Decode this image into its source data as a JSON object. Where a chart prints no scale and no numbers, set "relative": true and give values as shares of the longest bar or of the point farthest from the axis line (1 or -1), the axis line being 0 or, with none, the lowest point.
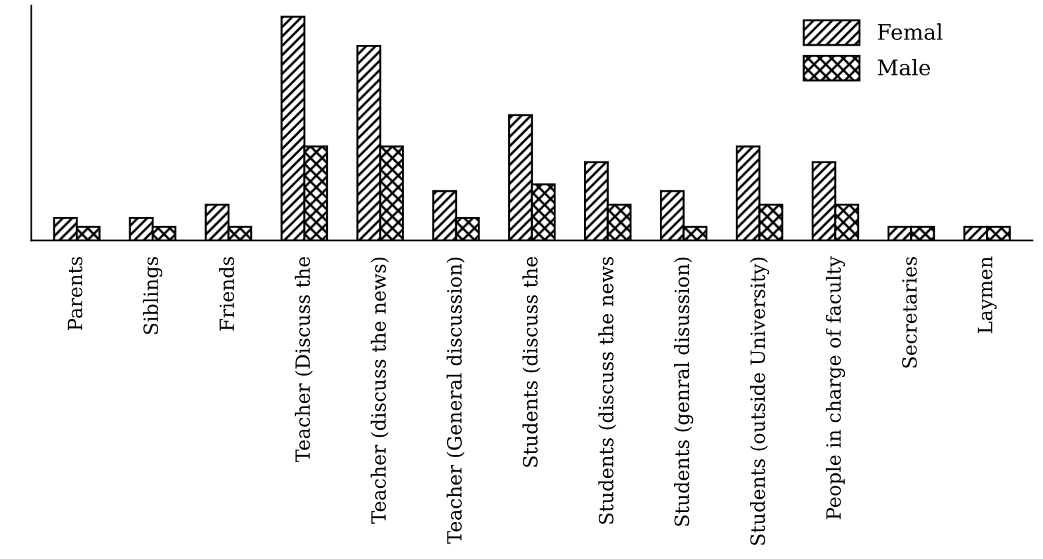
{
  "chart_data": {
    "type": "bar",
    "relative": true,
    "legend": "top right",
    "categories": [
      "Parents",
      "Siblings",
      "Friends",
      "Teacher (Discuss the",
      "Teacher (discuss the news)",
      "Teacher (General discussion)",
      "Students (discuss the",
      "Students (discuss the news",
      "Students (genral disussion)",
      "Students (outside University)",
      "People in charge of faculty",
      "Secretaries",
      "Laymen"
    ],
    "series": [
      {
        "name": "Femal",
        "color": "#000000",
        "values": [
          0.1,
          0.1,
          0.16,
          1,
          0.87,
          0.22,
          0.56,
          0.35,
          0.22,
          0.42,
          0.35,
          0.06,
          0.06
        ]
      },
      {
        "name": "Male",
        "color": "#000000",
        "values": [
          0.06,
          0.06,
          0.06,
          0.42,
          0.42,
          0.1,
          0.25,
          0.16,
          0.06,
          0.16,
          0.16,
          0.06,
          0.06
        ]
      }
    ]
  }
}
